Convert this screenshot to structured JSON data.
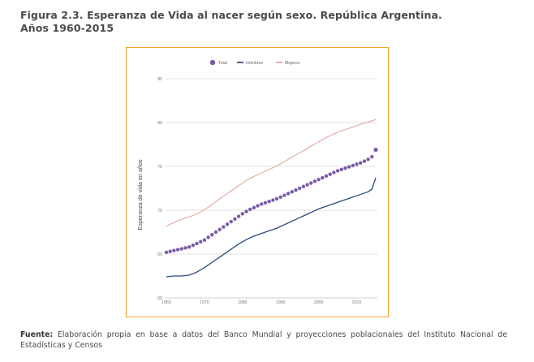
{
  "title_line1": "Figura 2.3. Esperanza de Vida al nacer según sexo. República Argentina.",
  "title_line2": "Años 1960-2015",
  "source_label": "Fuente:",
  "source_text": "Elaboración propia en base a datos del Banco Mundial y proyecciones poblacionales del Instituto Nacional de Estadísticas y Censos",
  "colors": {
    "frame": "#f2a52a",
    "total": "#7b5ba6",
    "hombres": "#2c4a7c",
    "mujeres": "#dfa9a0",
    "grid": "#d9d9d9"
  },
  "chart_data": {
    "type": "line",
    "title": "",
    "xlabel": "",
    "ylabel": "Esperanza de vida en años",
    "xlim": [
      1960,
      2015
    ],
    "ylim": [
      60,
      85
    ],
    "xticks": [
      1960,
      1970,
      1980,
      1990,
      2000,
      2010
    ],
    "yticks": [
      60,
      65,
      70,
      75,
      80,
      85
    ],
    "grid": true,
    "legend_position": "top-center",
    "x": [
      1960,
      1961,
      1962,
      1963,
      1964,
      1965,
      1966,
      1967,
      1968,
      1969,
      1970,
      1971,
      1972,
      1973,
      1974,
      1975,
      1976,
      1977,
      1978,
      1979,
      1980,
      1981,
      1982,
      1983,
      1984,
      1985,
      1986,
      1987,
      1988,
      1989,
      1990,
      1991,
      1992,
      1993,
      1994,
      1995,
      1996,
      1997,
      1998,
      1999,
      2000,
      2001,
      2002,
      2003,
      2004,
      2005,
      2006,
      2007,
      2008,
      2009,
      2010,
      2011,
      2012,
      2013,
      2014,
      2015
    ],
    "series": [
      {
        "name": "Total",
        "style": "dots",
        "values": [
          65.2,
          65.3,
          65.4,
          65.5,
          65.6,
          65.7,
          65.8,
          66.0,
          66.2,
          66.4,
          66.6,
          66.9,
          67.2,
          67.5,
          67.8,
          68.1,
          68.4,
          68.7,
          69.0,
          69.3,
          69.6,
          69.85,
          70.1,
          70.3,
          70.5,
          70.7,
          70.85,
          71.0,
          71.15,
          71.3,
          71.5,
          71.7,
          71.9,
          72.1,
          72.3,
          72.5,
          72.7,
          72.9,
          73.1,
          73.3,
          73.5,
          73.7,
          73.9,
          74.1,
          74.3,
          74.5,
          74.65,
          74.8,
          74.95,
          75.1,
          75.25,
          75.4,
          75.6,
          75.8,
          76.1,
          76.9
        ]
      },
      {
        "name": "Hombres",
        "style": "line",
        "values": [
          62.4,
          62.45,
          62.5,
          62.5,
          62.5,
          62.55,
          62.6,
          62.75,
          62.95,
          63.2,
          63.45,
          63.75,
          64.05,
          64.35,
          64.65,
          64.95,
          65.25,
          65.55,
          65.85,
          66.15,
          66.4,
          66.65,
          66.85,
          67.05,
          67.2,
          67.35,
          67.5,
          67.65,
          67.8,
          67.95,
          68.15,
          68.35,
          68.55,
          68.75,
          68.95,
          69.15,
          69.35,
          69.55,
          69.75,
          69.95,
          70.15,
          70.3,
          70.45,
          70.6,
          70.75,
          70.9,
          71.05,
          71.2,
          71.35,
          71.5,
          71.65,
          71.8,
          71.95,
          72.1,
          72.4,
          73.7
        ]
      },
      {
        "name": "Mujeres",
        "style": "line",
        "values": [
          68.2,
          68.4,
          68.6,
          68.8,
          68.95,
          69.1,
          69.25,
          69.4,
          69.6,
          69.8,
          70.05,
          70.35,
          70.65,
          70.95,
          71.3,
          71.6,
          71.9,
          72.2,
          72.5,
          72.8,
          73.1,
          73.4,
          73.65,
          73.85,
          74.05,
          74.25,
          74.45,
          74.65,
          74.85,
          75.05,
          75.3,
          75.55,
          75.8,
          76.05,
          76.3,
          76.55,
          76.8,
          77.05,
          77.3,
          77.55,
          77.8,
          78.05,
          78.3,
          78.5,
          78.7,
          78.9,
          79.05,
          79.2,
          79.35,
          79.5,
          79.65,
          79.8,
          79.95,
          80.05,
          80.2,
          80.35
        ]
      }
    ]
  }
}
